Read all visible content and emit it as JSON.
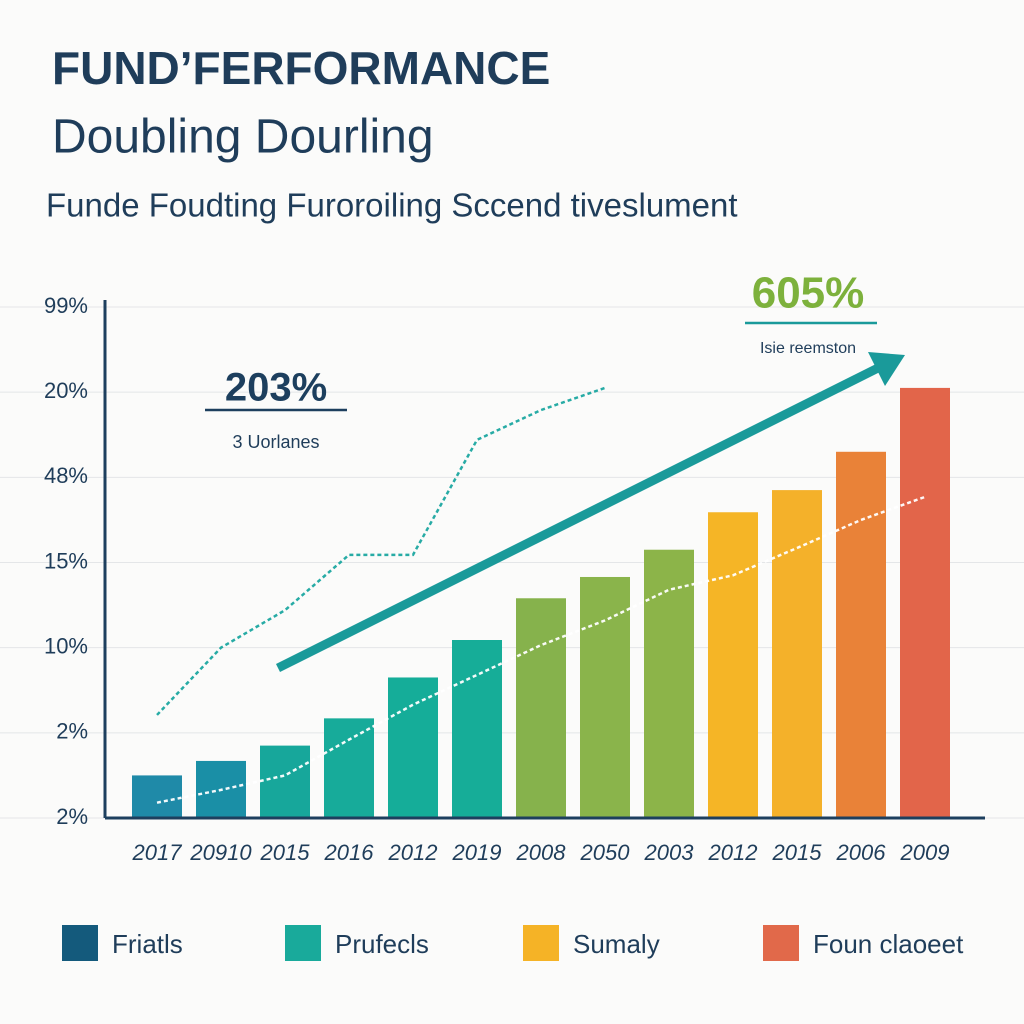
{
  "chart_data": {
    "type": "bar",
    "title": "FUND’FERFORMANCE",
    "subtitle": "Doubling Dourling",
    "description": "Funde Foudting Furoroiling Sccend tiveslument",
    "categories": [
      "2017",
      "20910",
      "2015",
      "2016",
      "2012",
      "2019",
      "2008",
      "2050",
      "2003",
      "2012",
      "2015",
      "2006",
      "2009"
    ],
    "values": [
      0.5,
      0.67,
      0.85,
      1.17,
      1.65,
      2.09,
      2.58,
      2.83,
      3.15,
      3.59,
      3.85,
      4.3,
      5.05
    ],
    "colors": [
      "#1f8aa8",
      "#1a8fa6",
      "#17a79b",
      "#17ab9a",
      "#15ad99",
      "#16ad98",
      "#86b24c",
      "#8ab44b",
      "#8cb449",
      "#f5b526",
      "#f4b12a",
      "#e98238",
      "#e2654a"
    ],
    "lines": [
      {
        "color": "#1ba6a0",
        "values": [
          1.21,
          2.0,
          2.44,
          3.09,
          3.09,
          4.44,
          4.79,
          5.05,
          null,
          null,
          null,
          null,
          null
        ]
      },
      {
        "color": "#ffffff",
        "values": [
          0.18,
          0.33,
          0.5,
          0.92,
          1.33,
          1.68,
          2.03,
          2.32,
          2.68,
          2.85,
          3.17,
          3.5,
          3.77
        ]
      }
    ],
    "ylim": [
      0,
      6
    ],
    "yticks": [
      {
        "value": 0,
        "label": "2%"
      },
      {
        "value": 1,
        "label": "2%"
      },
      {
        "value": 2,
        "label": "10%"
      },
      {
        "value": 3,
        "label": "15%"
      },
      {
        "value": 4,
        "label": "48%"
      },
      {
        "value": 5,
        "label": "20%"
      },
      {
        "value": 6,
        "label": "99%"
      }
    ],
    "grid": true,
    "annotations": [
      {
        "text": "203%",
        "note": "3 Uorlanes",
        "color": "#1d3f5e"
      },
      {
        "text": "605%",
        "note": "Isie reemston",
        "color": "#7db13c"
      }
    ],
    "legend": [
      {
        "name": "Friatls",
        "color": "#145a7c"
      },
      {
        "name": "Prufecls",
        "color": "#19aa9b"
      },
      {
        "name": "Sumaly",
        "color": "#f5b326"
      },
      {
        "name": "Foun claoeet",
        "color": "#e1694a"
      }
    ]
  }
}
